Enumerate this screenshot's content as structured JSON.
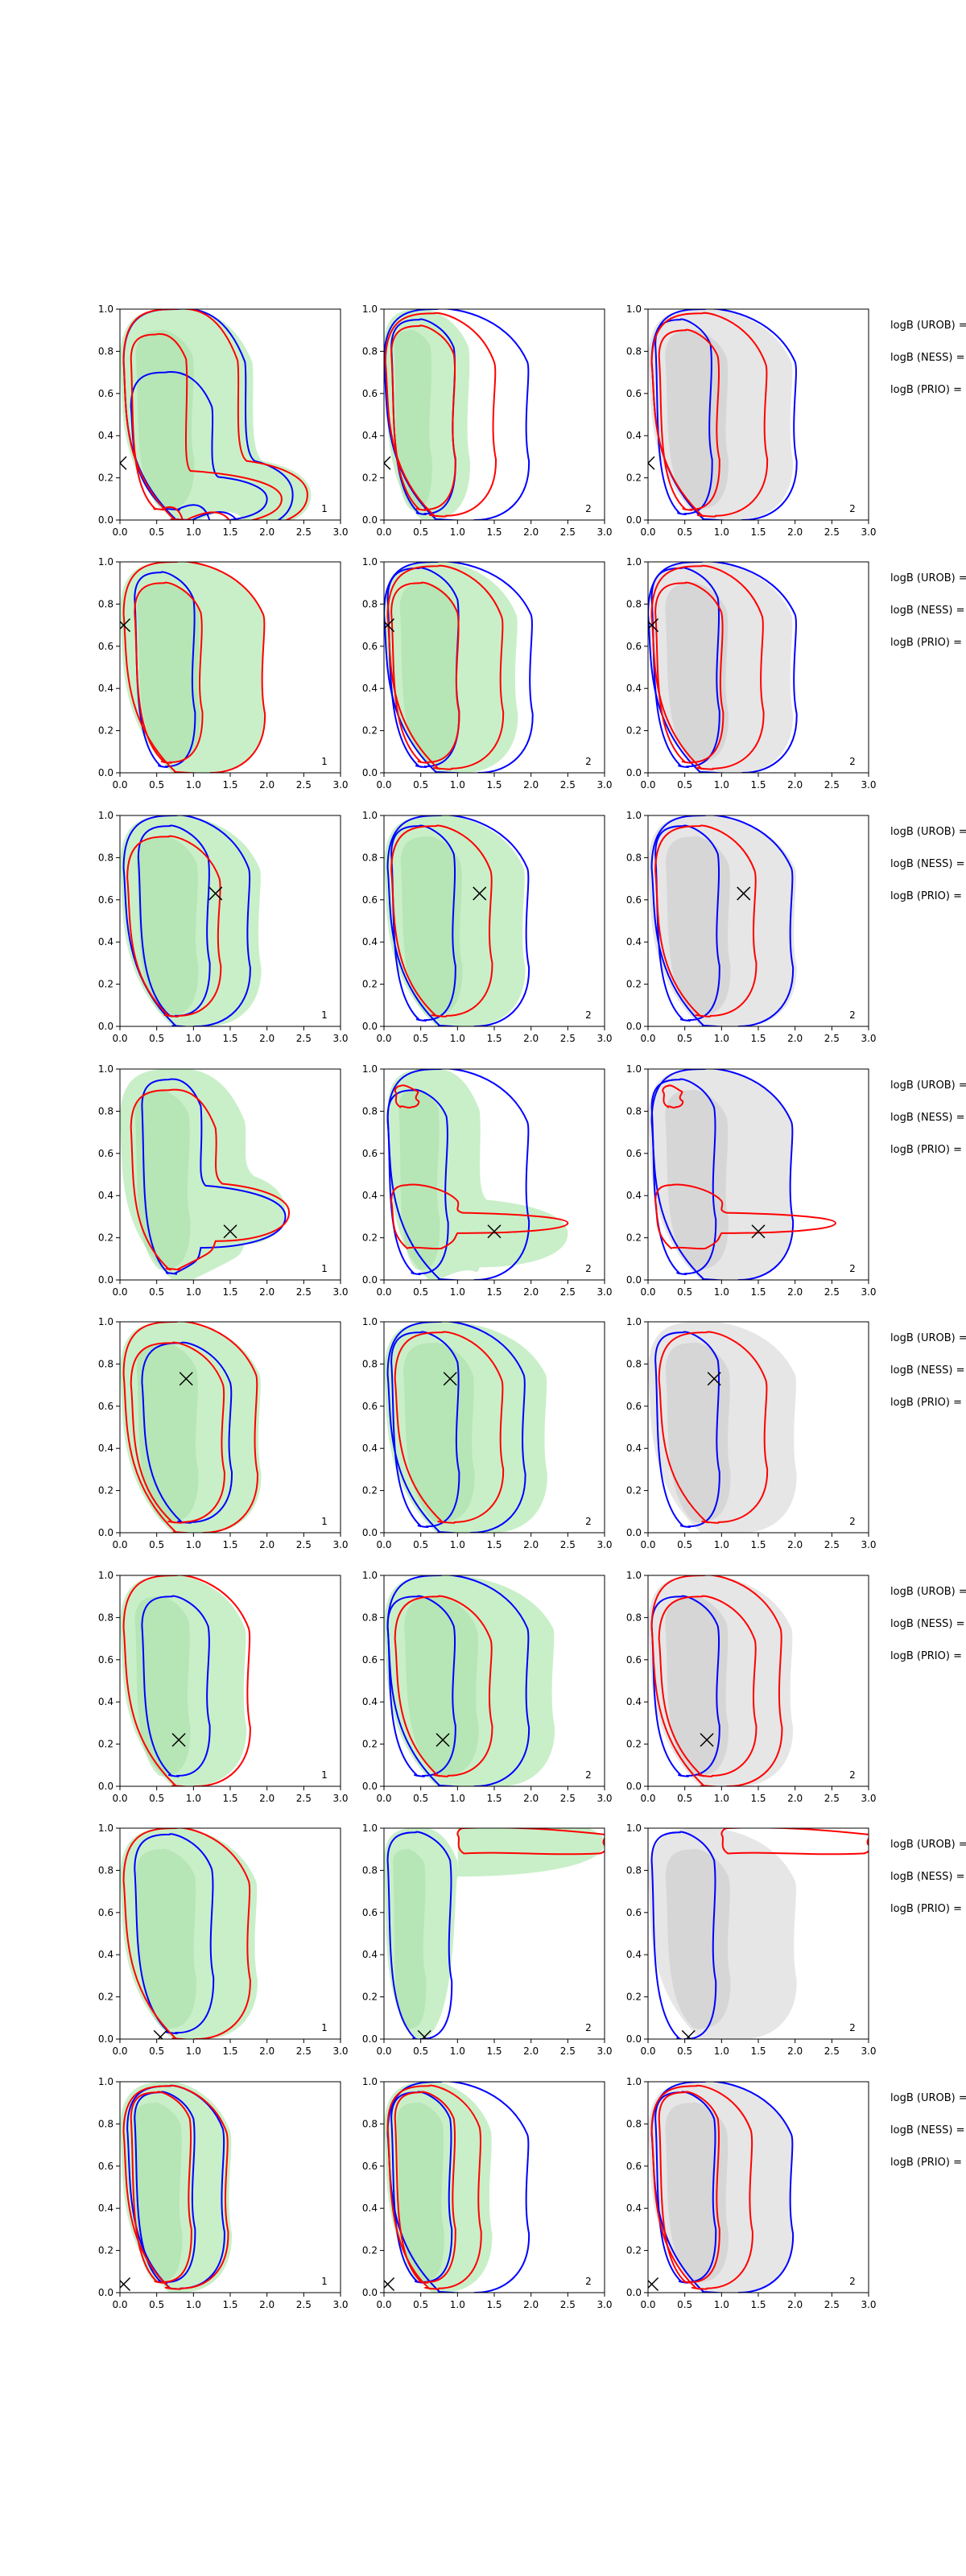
{
  "figure": {
    "background": "#ffffff"
  },
  "colors": {
    "fill_green": "#c9efc9",
    "fill_green_dark": "#a6dda6",
    "fill_gray": "#e6e6e6",
    "fill_gray_dark": "#c9c9c9",
    "contour_blue": "#0000ff",
    "contour_red": "#ff0000",
    "marker": "#000000",
    "axis": "#000000"
  },
  "chart_data": {
    "type": "contour",
    "layout": "8 rows x 3 columns of panels, with a logB text column at right of each row",
    "xlim": [
      0,
      3.0
    ],
    "ylim": [
      0,
      1.0
    ],
    "x_ticks": [
      "0.0",
      "0.5",
      "1.0",
      "1.5",
      "2.0",
      "2.5",
      "3.0"
    ],
    "y_ticks": [
      "0.0",
      "0.2",
      "0.4",
      "0.6",
      "0.8",
      "1.0"
    ],
    "grid": false,
    "legend": "none",
    "row_text_labels": [
      "logB (UROB) =",
      "logB (NESS) =",
      "logB (PRIO) ="
    ],
    "columns": [
      {
        "panel_label": "1",
        "fill": "green"
      },
      {
        "panel_label": "2",
        "fill": "green"
      },
      {
        "panel_label": "2",
        "fill": "gray"
      }
    ],
    "rows": [
      {
        "marker": {
          "x": 0.0,
          "y": 0.27
        },
        "panels": [
          {
            "fill_outer": {
              "x0": 0.0,
              "x1": 1.8,
              "y0": 0.0,
              "y1": 1.0,
              "tail": {
                "y": 0.12,
                "x_end": 2.6
              }
            },
            "blue": [
              {
                "x0": 0.15,
                "x1": 1.25,
                "y0": 0.05,
                "y1": 0.7,
                "tail": {
                  "y": 0.1,
                  "x_end": 2.0
                }
              },
              {
                "x0": 0.05,
                "x1": 1.7,
                "y0": 0.0,
                "y1": 1.0,
                "tail": {
                  "y": 0.12,
                  "x_end": 2.35
                }
              }
            ],
            "red": [
              {
                "x0": 0.15,
                "x1": 0.9,
                "y0": 0.05,
                "y1": 0.88,
                "tail": {
                  "y": 0.1,
                  "x_end": 2.2
                }
              },
              {
                "x0": 0.05,
                "x1": 1.6,
                "y0": 0.0,
                "y1": 1.0,
                "tail": {
                  "y": 0.12,
                  "x_end": 2.55
                }
              }
            ]
          },
          {
            "fill_outer": {
              "x0": 0.0,
              "x1": 1.15,
              "y0": 0.0,
              "y1": 1.0
            },
            "blue": [
              {
                "x0": 0.1,
                "x1": 0.95,
                "y0": 0.03,
                "y1": 0.95
              },
              {
                "x0": 0.0,
                "x1": 1.95,
                "y0": 0.0,
                "y1": 1.0
              }
            ],
            "red": [
              {
                "x0": 0.1,
                "x1": 0.95,
                "y0": 0.05,
                "y1": 0.92
              },
              {
                "x0": 0.02,
                "x1": 1.5,
                "y0": 0.02,
                "y1": 0.98
              }
            ]
          },
          {
            "fill_outer": {
              "x0": 0.0,
              "x1": 1.95,
              "y0": 0.0,
              "y1": 1.0
            },
            "blue": [
              {
                "x0": 0.1,
                "x1": 0.85,
                "y0": 0.03,
                "y1": 0.95
              },
              {
                "x0": 0.05,
                "x1": 2.0,
                "y0": 0.0,
                "y1": 1.0
              }
            ],
            "red": [
              {
                "x0": 0.15,
                "x1": 0.95,
                "y0": 0.05,
                "y1": 0.9
              },
              {
                "x0": 0.05,
                "x1": 1.6,
                "y0": 0.02,
                "y1": 0.98
              }
            ]
          }
        ]
      },
      {
        "marker": {
          "x": 0.05,
          "y": 0.7
        },
        "panels": [
          {
            "fill_outer": {
              "x0": 0.0,
              "x1": 1.95,
              "y0": 0.0,
              "y1": 1.0
            },
            "blue": [
              {
                "x0": 0.2,
                "x1": 1.0,
                "y0": 0.03,
                "y1": 0.95
              }
            ],
            "red": [
              {
                "x0": 0.2,
                "x1": 1.1,
                "y0": 0.05,
                "y1": 0.9
              },
              {
                "x0": 0.05,
                "x1": 1.95,
                "y0": 0.0,
                "y1": 1.0
              }
            ]
          },
          {
            "fill_outer": {
              "x0": 0.0,
              "x1": 1.8,
              "y0": 0.0,
              "y1": 1.0
            },
            "blue": [
              {
                "x0": 0.05,
                "x1": 1.0,
                "y0": 0.03,
                "y1": 0.97
              },
              {
                "x0": 0.0,
                "x1": 2.0,
                "y0": 0.0,
                "y1": 1.0
              }
            ],
            "red": [
              {
                "x0": 0.1,
                "x1": 1.0,
                "y0": 0.05,
                "y1": 0.9
              },
              {
                "x0": 0.05,
                "x1": 1.6,
                "y0": 0.02,
                "y1": 0.98
              }
            ]
          },
          {
            "fill_outer": {
              "x0": 0.0,
              "x1": 1.95,
              "y0": 0.0,
              "y1": 1.0
            },
            "blue": [
              {
                "x0": 0.05,
                "x1": 0.95,
                "y0": 0.03,
                "y1": 0.97
              },
              {
                "x0": 0.0,
                "x1": 2.0,
                "y0": 0.0,
                "y1": 1.0
              }
            ],
            "red": [
              {
                "x0": 0.1,
                "x1": 1.0,
                "y0": 0.05,
                "y1": 0.9
              },
              {
                "x0": 0.05,
                "x1": 1.55,
                "y0": 0.02,
                "y1": 0.98
              }
            ]
          }
        ]
      },
      {
        "marker": {
          "x": 1.3,
          "y": 0.63
        },
        "panels": [
          {
            "fill_outer": {
              "x0": 0.0,
              "x1": 1.9,
              "y0": 0.0,
              "y1": 1.0
            },
            "blue": [
              {
                "x0": 0.25,
                "x1": 1.2,
                "y0": 0.05,
                "y1": 0.95
              },
              {
                "x0": 0.05,
                "x1": 1.75,
                "y0": 0.0,
                "y1": 1.0
              }
            ],
            "red": [
              {
                "x0": 0.1,
                "x1": 1.35,
                "y0": 0.05,
                "y1": 0.9
              }
            ]
          },
          {
            "fill_outer": {
              "x0": 0.0,
              "x1": 1.9,
              "y0": 0.0,
              "y1": 1.0
            },
            "blue": [
              {
                "x0": 0.1,
                "x1": 0.95,
                "y0": 0.03,
                "y1": 0.95
              },
              {
                "x0": 0.05,
                "x1": 1.95,
                "y0": 0.0,
                "y1": 1.0
              }
            ],
            "red": [
              {
                "x0": 0.1,
                "x1": 1.45,
                "y0": 0.05,
                "y1": 0.95
              }
            ]
          },
          {
            "fill_outer": {
              "x0": 0.0,
              "x1": 2.0,
              "y0": 0.0,
              "y1": 1.0
            },
            "blue": [
              {
                "x0": 0.1,
                "x1": 0.95,
                "y0": 0.03,
                "y1": 0.95
              },
              {
                "x0": 0.05,
                "x1": 1.95,
                "y0": 0.0,
                "y1": 1.0
              }
            ],
            "red": [
              {
                "x0": 0.1,
                "x1": 1.45,
                "y0": 0.05,
                "y1": 0.95
              }
            ]
          }
        ]
      },
      {
        "marker": {
          "x": 1.5,
          "y": 0.23
        },
        "panels": [
          {
            "fill_outer": {
              "x0": 0.0,
              "x1": 1.7,
              "y0": 0.0,
              "y1": 1.0,
              "tail": {
                "y": 0.33,
                "x_end": 2.25
              }
            },
            "blue": [
              {
                "x0": 0.3,
                "x1": 1.1,
                "y0": 0.03,
                "y1": 0.95,
                "tail": {
                  "y": 0.3,
                  "x_end": 2.25
                }
              }
            ],
            "red": [
              {
                "x0": 0.15,
                "x1": 1.3,
                "y0": 0.05,
                "y1": 0.9,
                "tail": {
                  "y": 0.32,
                  "x_end": 2.3
                }
              }
            ]
          },
          {
            "fill_outer": {
              "x0": 0.05,
              "x1": 1.3,
              "y0": 0.0,
              "y1": 1.0,
              "tail": {
                "y": 0.22,
                "x_end": 2.5
              }
            },
            "blue": [
              {
                "x0": 0.05,
                "x1": 0.85,
                "y0": 0.03,
                "y1": 0.9
              },
              {
                "x0": 0.05,
                "x1": 1.95,
                "y0": 0.0,
                "y1": 1.0
              }
            ],
            "red": [
              {
                "x0": 0.15,
                "x1": 0.45,
                "y0": 0.82,
                "y1": 0.92
              },
              {
                "x0": 0.1,
                "x1": 1.0,
                "y0": 0.15,
                "y1": 0.45,
                "tail": {
                  "y": 0.27,
                  "x_end": 2.5
                }
              }
            ]
          },
          {
            "fill_outer": {
              "x0": 0.0,
              "x1": 1.95,
              "y0": 0.0,
              "y1": 1.0
            },
            "blue": [
              {
                "x0": 0.05,
                "x1": 0.9,
                "y0": 0.03,
                "y1": 0.95
              },
              {
                "x0": 0.05,
                "x1": 1.95,
                "y0": 0.0,
                "y1": 1.0
              }
            ],
            "red": [
              {
                "x0": 0.2,
                "x1": 0.45,
                "y0": 0.82,
                "y1": 0.92
              },
              {
                "x0": 0.1,
                "x1": 1.0,
                "y0": 0.15,
                "y1": 0.45,
                "tail": {
                  "y": 0.27,
                  "x_end": 2.55
                }
              }
            ]
          }
        ]
      },
      {
        "marker": {
          "x": 0.9,
          "y": 0.73
        },
        "panels": [
          {
            "fill_outer": {
              "x0": 0.0,
              "x1": 1.9,
              "y0": 0.0,
              "y1": 1.0
            },
            "blue": [
              {
                "x0": 0.3,
                "x1": 1.5,
                "y0": 0.05,
                "y1": 0.9
              }
            ],
            "red": [
              {
                "x0": 0.15,
                "x1": 1.4,
                "y0": 0.05,
                "y1": 0.9
              },
              {
                "x0": 0.05,
                "x1": 1.85,
                "y0": 0.0,
                "y1": 1.0
              }
            ]
          },
          {
            "fill_outer": {
              "x0": 0.0,
              "x1": 2.2,
              "y0": 0.0,
              "y1": 1.0
            },
            "blue": [
              {
                "x0": 0.1,
                "x1": 1.0,
                "y0": 0.03,
                "y1": 0.95
              },
              {
                "x0": 0.05,
                "x1": 1.9,
                "y0": 0.0,
                "y1": 1.0
              }
            ],
            "red": [
              {
                "x0": 0.15,
                "x1": 1.6,
                "y0": 0.05,
                "y1": 0.95
              }
            ]
          },
          {
            "fill_outer": {
              "x0": 0.0,
              "x1": 2.0,
              "y0": 0.0,
              "y1": 1.0
            },
            "blue": [
              {
                "x0": 0.1,
                "x1": 0.95,
                "y0": 0.03,
                "y1": 0.95
              }
            ],
            "red": [
              {
                "x0": 0.15,
                "x1": 1.6,
                "y0": 0.05,
                "y1": 0.95
              }
            ]
          }
        ]
      },
      {
        "marker": {
          "x": 0.8,
          "y": 0.22
        },
        "panels": [
          {
            "fill_outer": {
              "x0": 0.0,
              "x1": 1.7,
              "y0": 0.0,
              "y1": 1.0
            },
            "blue": [
              {
                "x0": 0.3,
                "x1": 1.2,
                "y0": 0.05,
                "y1": 0.9
              }
            ],
            "red": [
              {
                "x0": 0.05,
                "x1": 1.75,
                "y0": 0.0,
                "y1": 1.0
              }
            ]
          },
          {
            "fill_outer": {
              "x0": 0.0,
              "x1": 2.3,
              "y0": 0.0,
              "y1": 1.0
            },
            "blue": [
              {
                "x0": 0.05,
                "x1": 0.95,
                "y0": 0.05,
                "y1": 0.9
              },
              {
                "x0": 0.05,
                "x1": 1.95,
                "y0": 0.0,
                "y1": 1.0
              }
            ],
            "red": [
              {
                "x0": 0.15,
                "x1": 1.45,
                "y0": 0.05,
                "y1": 0.9
              }
            ]
          },
          {
            "fill_outer": {
              "x0": 0.0,
              "x1": 1.95,
              "y0": 0.0,
              "y1": 1.0
            },
            "blue": [
              {
                "x0": 0.05,
                "x1": 0.95,
                "y0": 0.05,
                "y1": 0.9
              }
            ],
            "red": [
              {
                "x0": 0.15,
                "x1": 1.45,
                "y0": 0.05,
                "y1": 0.9
              },
              {
                "x0": 0.05,
                "x1": 1.8,
                "y0": 0.0,
                "y1": 1.0
              }
            ]
          }
        ]
      },
      {
        "marker": {
          "x": 0.55,
          "y": 0.01
        },
        "panels": [
          {
            "fill_outer": {
              "x0": 0.0,
              "x1": 1.85,
              "y0": 0.0,
              "y1": 1.0
            },
            "blue": [
              {
                "x0": 0.2,
                "x1": 1.25,
                "y0": 0.03,
                "y1": 0.97
              }
            ],
            "red": [
              {
                "x0": 0.05,
                "x1": 1.75,
                "y0": 0.0,
                "y1": 1.0
              }
            ]
          },
          {
            "fill_outer": {
              "x0": 0.0,
              "x1": 1.0,
              "y0": 0.0,
              "y1": 1.0,
              "tail": {
                "y": 0.93,
                "x_end": 3.0
              }
            },
            "blue": [
              {
                "x0": 0.05,
                "x1": 0.9,
                "y0": 0.0,
                "y1": 0.98
              }
            ],
            "red": [
              {
                "x0": 1.0,
                "x1": 3.0,
                "y0": 0.88,
                "y1": 1.0
              }
            ]
          },
          {
            "fill_outer": {
              "x0": 0.0,
              "x1": 2.0,
              "y0": 0.0,
              "y1": 1.0
            },
            "blue": [
              {
                "x0": 0.05,
                "x1": 0.9,
                "y0": 0.0,
                "y1": 0.98
              }
            ],
            "red": [
              {
                "x0": 1.0,
                "x1": 3.0,
                "y0": 0.88,
                "y1": 1.0
              }
            ]
          }
        ]
      },
      {
        "marker": {
          "x": 0.05,
          "y": 0.04
        },
        "panels": [
          {
            "fill_outer": {
              "x0": 0.0,
              "x1": 1.5,
              "y0": 0.0,
              "y1": 1.0
            },
            "blue": [
              {
                "x0": 0.2,
                "x1": 1.0,
                "y0": 0.05,
                "y1": 0.95
              },
              {
                "x0": 0.1,
                "x1": 1.4,
                "y0": 0.02,
                "y1": 0.98
              }
            ],
            "red": [
              {
                "x0": 0.15,
                "x1": 0.95,
                "y0": 0.05,
                "y1": 0.95
              },
              {
                "x0": 0.05,
                "x1": 1.45,
                "y0": 0.02,
                "y1": 0.98
              }
            ]
          },
          {
            "fill_outer": {
              "x0": 0.0,
              "x1": 1.45,
              "y0": 0.0,
              "y1": 1.0
            },
            "blue": [
              {
                "x0": 0.1,
                "x1": 0.9,
                "y0": 0.05,
                "y1": 0.95
              },
              {
                "x0": 0.05,
                "x1": 1.95,
                "y0": 0.0,
                "y1": 1.0
              }
            ],
            "red": [
              {
                "x0": 0.15,
                "x1": 0.95,
                "y0": 0.05,
                "y1": 0.95
              },
              {
                "x0": 0.05,
                "x1": 1.3,
                "y0": 0.02,
                "y1": 0.98
              }
            ]
          },
          {
            "fill_outer": {
              "x0": 0.0,
              "x1": 1.95,
              "y0": 0.0,
              "y1": 1.0
            },
            "blue": [
              {
                "x0": 0.1,
                "x1": 0.9,
                "y0": 0.05,
                "y1": 0.95
              },
              {
                "x0": 0.05,
                "x1": 1.95,
                "y0": 0.0,
                "y1": 1.0
              }
            ],
            "red": [
              {
                "x0": 0.15,
                "x1": 0.95,
                "y0": 0.05,
                "y1": 0.95
              },
              {
                "x0": 0.05,
                "x1": 1.4,
                "y0": 0.02,
                "y1": 0.98
              }
            ]
          }
        ]
      }
    ]
  }
}
